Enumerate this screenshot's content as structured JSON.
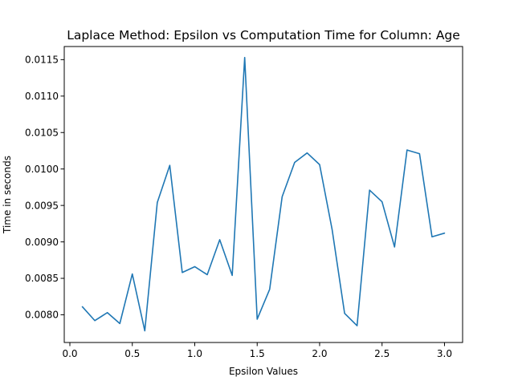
{
  "chart_data": {
    "type": "line",
    "title": "Laplace Method: Epsilon vs Computation Time for Column: Age",
    "xlabel": "Epsilon Values",
    "ylabel": "Time in seconds",
    "xlim": [
      -0.045,
      3.145
    ],
    "ylim": [
      0.00762,
      0.01168
    ],
    "xticks": [
      0.0,
      0.5,
      1.0,
      1.5,
      2.0,
      2.5,
      3.0
    ],
    "xtick_labels": [
      "0.0",
      "0.5",
      "1.0",
      "1.5",
      "2.0",
      "2.5",
      "3.0"
    ],
    "yticks": [
      0.008,
      0.0085,
      0.009,
      0.0095,
      0.01,
      0.0105,
      0.011,
      0.0115
    ],
    "ytick_labels": [
      "0.0080",
      "0.0085",
      "0.0090",
      "0.0095",
      "0.0100",
      "0.0105",
      "0.0110",
      "0.0115"
    ],
    "grid": false,
    "legend": "none",
    "color": "#1f77b4",
    "series": [
      {
        "x": [
          0.1,
          0.2,
          0.3,
          0.4,
          0.5,
          0.6,
          0.7,
          0.8,
          0.9,
          1.0,
          1.1,
          1.2,
          1.3,
          1.4,
          1.5,
          1.6,
          1.7,
          1.8,
          1.9,
          2.0,
          2.1,
          2.2,
          2.3,
          2.4,
          2.5,
          2.6,
          2.7,
          2.8,
          2.9,
          3.0
        ],
        "values": [
          0.00811,
          0.00792,
          0.00803,
          0.00788,
          0.00856,
          0.00778,
          0.00954,
          0.01005,
          0.00858,
          0.00866,
          0.00855,
          0.00903,
          0.00854,
          0.01153,
          0.00794,
          0.00835,
          0.00962,
          0.01009,
          0.01022,
          0.01006,
          0.00917,
          0.00802,
          0.00785,
          0.00971,
          0.00955,
          0.00893,
          0.01026,
          0.01021,
          0.00907,
          0.00912
        ]
      }
    ]
  }
}
